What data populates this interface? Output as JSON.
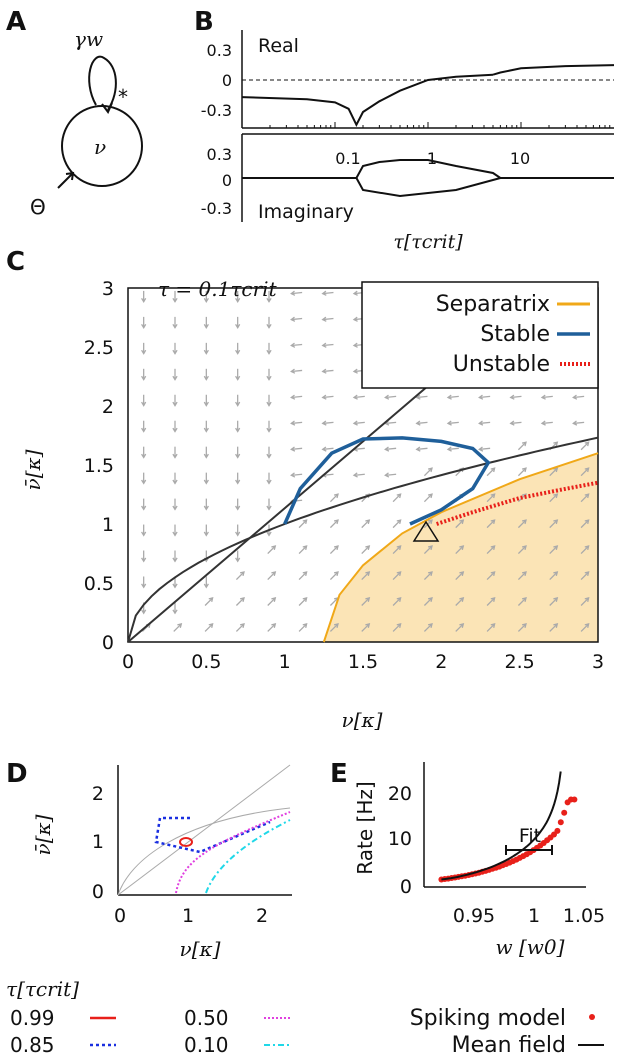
{
  "panels": {
    "A": {
      "letter": "A",
      "loop_label": "γw",
      "node_label": "ν",
      "input_label": "Θ",
      "star": "*"
    },
    "B": {
      "letter": "B",
      "real_label": "Real",
      "imag_label": "Imaginary",
      "xlabel": "τ[τcrit]",
      "real_yticks": [
        "0.3",
        "0",
        "-0.3"
      ],
      "imag_yticks": [
        "0.3",
        "0",
        "-0.3"
      ],
      "xticks": [
        "0.1",
        "1",
        "10"
      ]
    },
    "C": {
      "letter": "C",
      "annotation": "τ = 0.1τcrit",
      "xlabel": "ν[κ]",
      "ylabel": "ν̄[κ]",
      "xticks": [
        "0",
        "0.5",
        "1",
        "1.5",
        "2",
        "2.5",
        "3"
      ],
      "yticks": [
        "0",
        "0.5",
        "1",
        "1.5",
        "2",
        "2.5",
        "3"
      ],
      "legend": [
        {
          "label": "Separatrix",
          "color": "#f0a818",
          "style": "solid"
        },
        {
          "label": "Stable",
          "color": "#1f5f9a",
          "style": "solid"
        },
        {
          "label": "Unstable",
          "color": "#e8201a",
          "style": "dotted"
        }
      ]
    },
    "D": {
      "letter": "D",
      "xlabel": "ν[κ]",
      "ylabel": "ν̄[κ]",
      "xticks": [
        "0",
        "1",
        "2"
      ],
      "yticks": [
        "0",
        "1",
        "2"
      ],
      "legend_title": "τ[τcrit]",
      "legend": [
        {
          "label": "0.99",
          "color": "#e8201a",
          "style": "solid"
        },
        {
          "label": "0.50",
          "color": "#e040e0",
          "style": "dotted"
        },
        {
          "label": "0.85",
          "color": "#1a2fe0",
          "style": "dotted"
        },
        {
          "label": "0.10",
          "color": "#20d8e8",
          "style": "dashdot"
        }
      ]
    },
    "E": {
      "letter": "E",
      "xlabel": "w [w0]",
      "ylabel": "Rate [Hz]",
      "xticks": [
        "0.95",
        "1",
        "1.05"
      ],
      "yticks": [
        "0",
        "10",
        "20"
      ],
      "fit_label": "Fit",
      "legend": [
        {
          "label": "Spiking model",
          "color": "#e8201a",
          "style": "dots"
        },
        {
          "label": "Mean field",
          "color": "#111111",
          "style": "solid"
        }
      ]
    }
  },
  "chart_data": [
    {
      "panel": "B-real",
      "type": "line",
      "xscale": "log",
      "xlim": [
        0.01,
        100
      ],
      "ylim": [
        -0.45,
        0.45
      ],
      "series": [
        {
          "x": [
            0.01,
            0.05,
            0.1,
            0.14,
            0.17,
            0.2,
            0.3,
            0.5,
            1,
            2,
            5,
            6,
            10,
            30,
            100
          ],
          "y": [
            -0.16,
            -0.18,
            -0.21,
            -0.27,
            -0.42,
            -0.3,
            -0.2,
            -0.1,
            0.0,
            0.03,
            0.05,
            0.07,
            0.11,
            0.13,
            0.14
          ]
        }
      ]
    },
    {
      "panel": "B-imaginary",
      "type": "line",
      "xscale": "log",
      "xlim": [
        0.01,
        100
      ],
      "ylim": [
        -0.45,
        0.45
      ],
      "series": [
        {
          "x": [
            0.01,
            0.17,
            0.2,
            0.3,
            0.5,
            1,
            2,
            5,
            6,
            100
          ],
          "y": [
            0,
            0,
            0.12,
            0.16,
            0.18,
            0.18,
            0.12,
            0.05,
            0,
            0
          ]
        }
      ]
    },
    {
      "panel": "C",
      "type": "line",
      "xlim": [
        0,
        3
      ],
      "ylim": [
        0,
        3
      ],
      "series": [
        {
          "name": "Separatrix",
          "x": [
            1.25,
            1.35,
            1.5,
            1.75,
            2.0,
            2.5,
            3.0
          ],
          "y": [
            0.0,
            0.4,
            0.65,
            0.92,
            1.1,
            1.38,
            1.6
          ]
        },
        {
          "name": "Stable",
          "x": [
            1.8,
            2.0,
            2.2,
            2.3,
            2.2,
            2.0,
            1.75,
            1.5,
            1.3,
            1.1,
            1.0
          ],
          "y": [
            1.0,
            1.12,
            1.3,
            1.52,
            1.64,
            1.7,
            1.73,
            1.72,
            1.6,
            1.3,
            1.0
          ]
        },
        {
          "name": "Unstable",
          "x": [
            1.97,
            2.2,
            2.5,
            2.8,
            3.0
          ],
          "y": [
            1.0,
            1.1,
            1.22,
            1.3,
            1.35
          ]
        }
      ]
    },
    {
      "panel": "E",
      "type": "scatter",
      "xlim": [
        0.925,
        1.065
      ],
      "ylim": [
        0,
        25
      ],
      "series": [
        {
          "name": "Spiking model",
          "x": [
            0.94,
            0.96,
            0.98,
            1.0,
            1.02,
            1.03,
            1.04,
            1.05,
            1.055
          ],
          "y": [
            1.5,
            1.8,
            2.3,
            3.0,
            4.2,
            5.5,
            8.0,
            13.0,
            17.0
          ]
        },
        {
          "name": "Mean field",
          "x": [
            0.94,
            0.96,
            0.98,
            1.0,
            1.02,
            1.03,
            1.04,
            1.045,
            1.05
          ],
          "y": [
            1.5,
            1.8,
            2.3,
            3.0,
            4.3,
            6.0,
            10.0,
            15.0,
            25.0
          ]
        }
      ]
    }
  ]
}
